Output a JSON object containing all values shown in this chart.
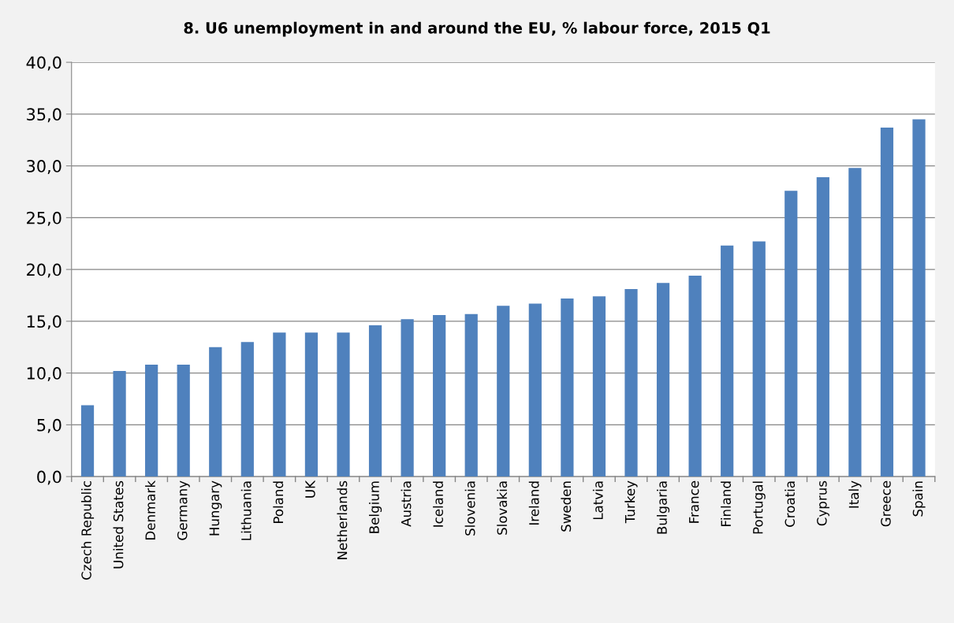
{
  "chart_data": {
    "type": "bar",
    "title": "8. U6 unemployment in and around the EU, % labour force, 2015 Q1",
    "categories": [
      "Czech Republic",
      "United States",
      "Denmark",
      "Germany",
      "Hungary",
      "Lithuania",
      "Poland",
      "UK",
      "Netherlands",
      "Belgium",
      "Austria",
      "Iceland",
      "Slovenia",
      "Slovakia",
      "Ireland",
      "Sweden",
      "Latvia",
      "Turkey",
      "Bulgaria",
      "France",
      "Finland",
      "Portugal",
      "Croatia",
      "Cyprus",
      "Italy",
      "Greece",
      "Spain"
    ],
    "values": [
      6.9,
      10.2,
      10.8,
      10.8,
      12.5,
      13.0,
      13.9,
      13.9,
      13.9,
      14.6,
      15.2,
      15.6,
      15.7,
      16.5,
      16.7,
      17.2,
      17.4,
      18.1,
      18.7,
      19.4,
      22.3,
      22.7,
      27.6,
      28.9,
      29.8,
      33.7,
      34.5
    ],
    "color": "#4f81bd",
    "ylim": [
      0,
      40
    ],
    "yticks": [
      {
        "value": 0,
        "label": "0,0"
      },
      {
        "value": 5,
        "label": "5,0"
      },
      {
        "value": 10,
        "label": "10,0"
      },
      {
        "value": 15,
        "label": "15,0"
      },
      {
        "value": 20,
        "label": "20,0"
      },
      {
        "value": 25,
        "label": "25,0"
      },
      {
        "value": 30,
        "label": "30,0"
      },
      {
        "value": 35,
        "label": "35,0"
      },
      {
        "value": 40,
        "label": "40,0"
      }
    ],
    "grid": "y"
  }
}
